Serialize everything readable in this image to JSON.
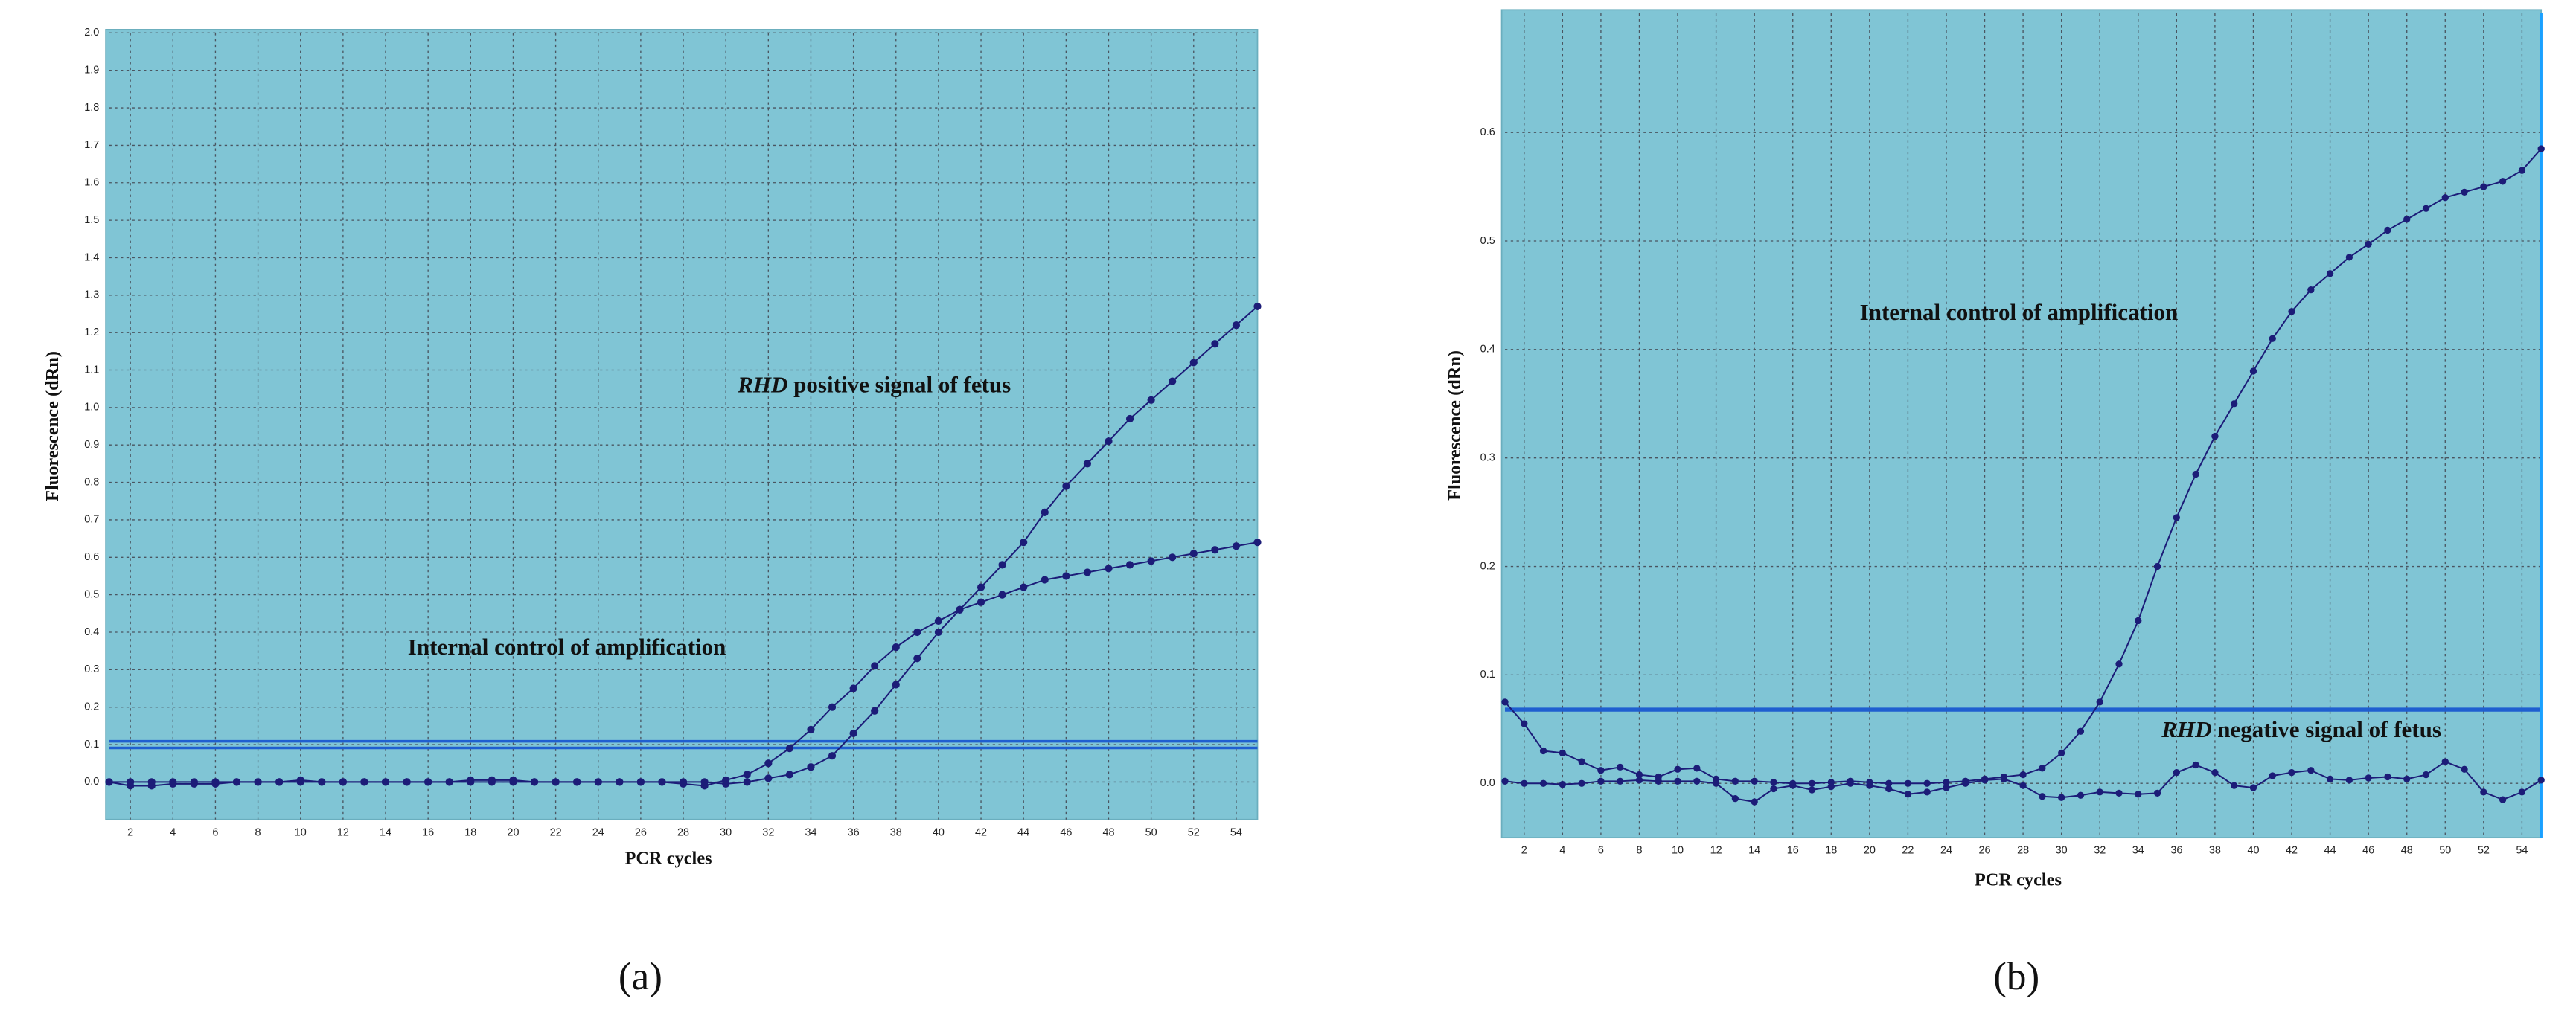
{
  "chart_data": [
    {
      "type": "line",
      "panel_label": "(a)",
      "xlabel": "PCR cycles",
      "ylabel": "Fluorescence (dRn)",
      "x": [
        1,
        2,
        3,
        4,
        5,
        6,
        7,
        8,
        9,
        10,
        11,
        12,
        13,
        14,
        15,
        16,
        17,
        18,
        19,
        20,
        21,
        22,
        23,
        24,
        25,
        26,
        27,
        28,
        29,
        30,
        31,
        32,
        33,
        34,
        35,
        36,
        37,
        38,
        39,
        40,
        41,
        42,
        43,
        44,
        45,
        46,
        47,
        48,
        49,
        50,
        51,
        52,
        53,
        54,
        55
      ],
      "xlim": [
        1,
        55
      ],
      "xticks": [
        2,
        4,
        6,
        8,
        10,
        12,
        14,
        16,
        18,
        20,
        22,
        24,
        26,
        28,
        30,
        32,
        34,
        36,
        38,
        40,
        42,
        44,
        46,
        48,
        50,
        52,
        54
      ],
      "ylim": [
        -0.1,
        2.0
      ],
      "yticks": [
        {
          "value": 0,
          "label": "0.0"
        },
        0.1,
        0.2,
        0.3,
        0.4,
        0.5,
        0.6,
        0.7,
        0.8,
        0.9,
        {
          "value": 1,
          "label": "1.0"
        },
        1.1,
        1.2,
        1.3,
        1.4,
        1.5,
        1.6,
        1.7,
        1.8,
        1.9,
        {
          "value": 2,
          "label": "2.0"
        }
      ],
      "grid": true,
      "threshold": 0.1,
      "threshold_color": "#1f5fd0",
      "series": [
        {
          "color": "#1c1c78",
          "values": [
            0,
            -0.01,
            -0.01,
            -0.005,
            -0.005,
            -0.005,
            0,
            0,
            0,
            0,
            0,
            0,
            0,
            0,
            0,
            0,
            0,
            0,
            0,
            0,
            0,
            0,
            0,
            0,
            0,
            0,
            0,
            -0.005,
            -0.01,
            0.005,
            0.02,
            0.05,
            0.09,
            0.14,
            0.2,
            0.25,
            0.31,
            0.36,
            0.4,
            0.43,
            0.46,
            0.48,
            0.5,
            0.52,
            0.54,
            0.55,
            0.56,
            0.57,
            0.58,
            0.59,
            0.6,
            0.61,
            0.62,
            0.63,
            0.64
          ]
        },
        {
          "color": "#1c1c78",
          "values": [
            0,
            0,
            0,
            0,
            0,
            0,
            0,
            0,
            0,
            0.005,
            0,
            0,
            0,
            0,
            0,
            0,
            0,
            0.005,
            0.005,
            0.005,
            0,
            0,
            0,
            0,
            0,
            0,
            0,
            0,
            0,
            -0.005,
            0,
            0.01,
            0.02,
            0.04,
            0.07,
            0.13,
            0.19,
            0.26,
            0.33,
            0.4,
            0.46,
            0.52,
            0.58,
            0.64,
            0.72,
            0.79,
            0.85,
            0.91,
            0.97,
            1.02,
            1.07,
            1.12,
            1.17,
            1.22,
            1.27
          ]
        }
      ],
      "annotations": [
        {
          "emphasis": "RHD",
          "text": "positive signal of fetus"
        },
        {
          "text": "Internal control of amplification"
        }
      ]
    },
    {
      "type": "line",
      "panel_label": "(b)",
      "xlabel": "PCR cycles",
      "ylabel": "Fluorescence (dRn)",
      "x": [
        1,
        2,
        3,
        4,
        5,
        6,
        7,
        8,
        9,
        10,
        11,
        12,
        13,
        14,
        15,
        16,
        17,
        18,
        19,
        20,
        21,
        22,
        23,
        24,
        25,
        26,
        27,
        28,
        29,
        30,
        31,
        32,
        33,
        34,
        35,
        36,
        37,
        38,
        39,
        40,
        41,
        42,
        43,
        44,
        45,
        46,
        47,
        48,
        49,
        50,
        51,
        52,
        53,
        54,
        55
      ],
      "xlim": [
        1,
        55
      ],
      "xticks": [
        2,
        4,
        6,
        8,
        10,
        12,
        14,
        16,
        18,
        20,
        22,
        24,
        26,
        28,
        30,
        32,
        34,
        36,
        38,
        40,
        42,
        44,
        46,
        48,
        50,
        52,
        54
      ],
      "ylim": [
        -0.05,
        0.71
      ],
      "yticks": [
        {
          "value": 0,
          "label": "0.0"
        },
        0.1,
        0.2,
        0.3,
        0.4,
        0.5,
        0.6
      ],
      "grid": true,
      "threshold": 0.068,
      "threshold_color": "#1f5fd0",
      "series": [
        {
          "color": "#1c1c78",
          "values": [
            0.075,
            0.055,
            0.03,
            0.028,
            0.02,
            0.012,
            0.015,
            0.008,
            0.006,
            0.013,
            0.014,
            0.004,
            0.002,
            0.002,
            0.001,
            0,
            0,
            0.001,
            0.002,
            0.001,
            0,
            0,
            0,
            0.001,
            0.002,
            0.004,
            0.006,
            0.008,
            0.014,
            0.028,
            0.048,
            0.075,
            0.11,
            0.15,
            0.2,
            0.245,
            0.285,
            0.32,
            0.35,
            0.38,
            0.41,
            0.435,
            0.455,
            0.47,
            0.485,
            0.497,
            0.51,
            0.52,
            0.53,
            0.54,
            0.545,
            0.55,
            0.555,
            0.565,
            0.585
          ]
        },
        {
          "color": "#1c1c78",
          "values": [
            0.002,
            0,
            0,
            -0.001,
            0,
            0.002,
            0.002,
            0.003,
            0.002,
            0.002,
            0.002,
            0,
            -0.014,
            -0.017,
            -0.005,
            -0.002,
            -0.006,
            -0.003,
            0,
            -0.002,
            -0.005,
            -0.01,
            -0.008,
            -0.004,
            0,
            0.003,
            0.004,
            -0.002,
            -0.012,
            -0.013,
            -0.011,
            -0.008,
            -0.009,
            -0.01,
            -0.009,
            0.01,
            0.017,
            0.01,
            -0.002,
            -0.004,
            0.007,
            0.01,
            0.012,
            0.004,
            0.003,
            0.005,
            0.006,
            0.004,
            0.008,
            0.02,
            0.013,
            -0.008,
            -0.015,
            -0.008,
            0.003
          ]
        }
      ],
      "annotations": [
        {
          "text": "Internal control of amplification"
        },
        {
          "emphasis": "RHD",
          "text": "negative signal of fetus"
        }
      ]
    }
  ]
}
